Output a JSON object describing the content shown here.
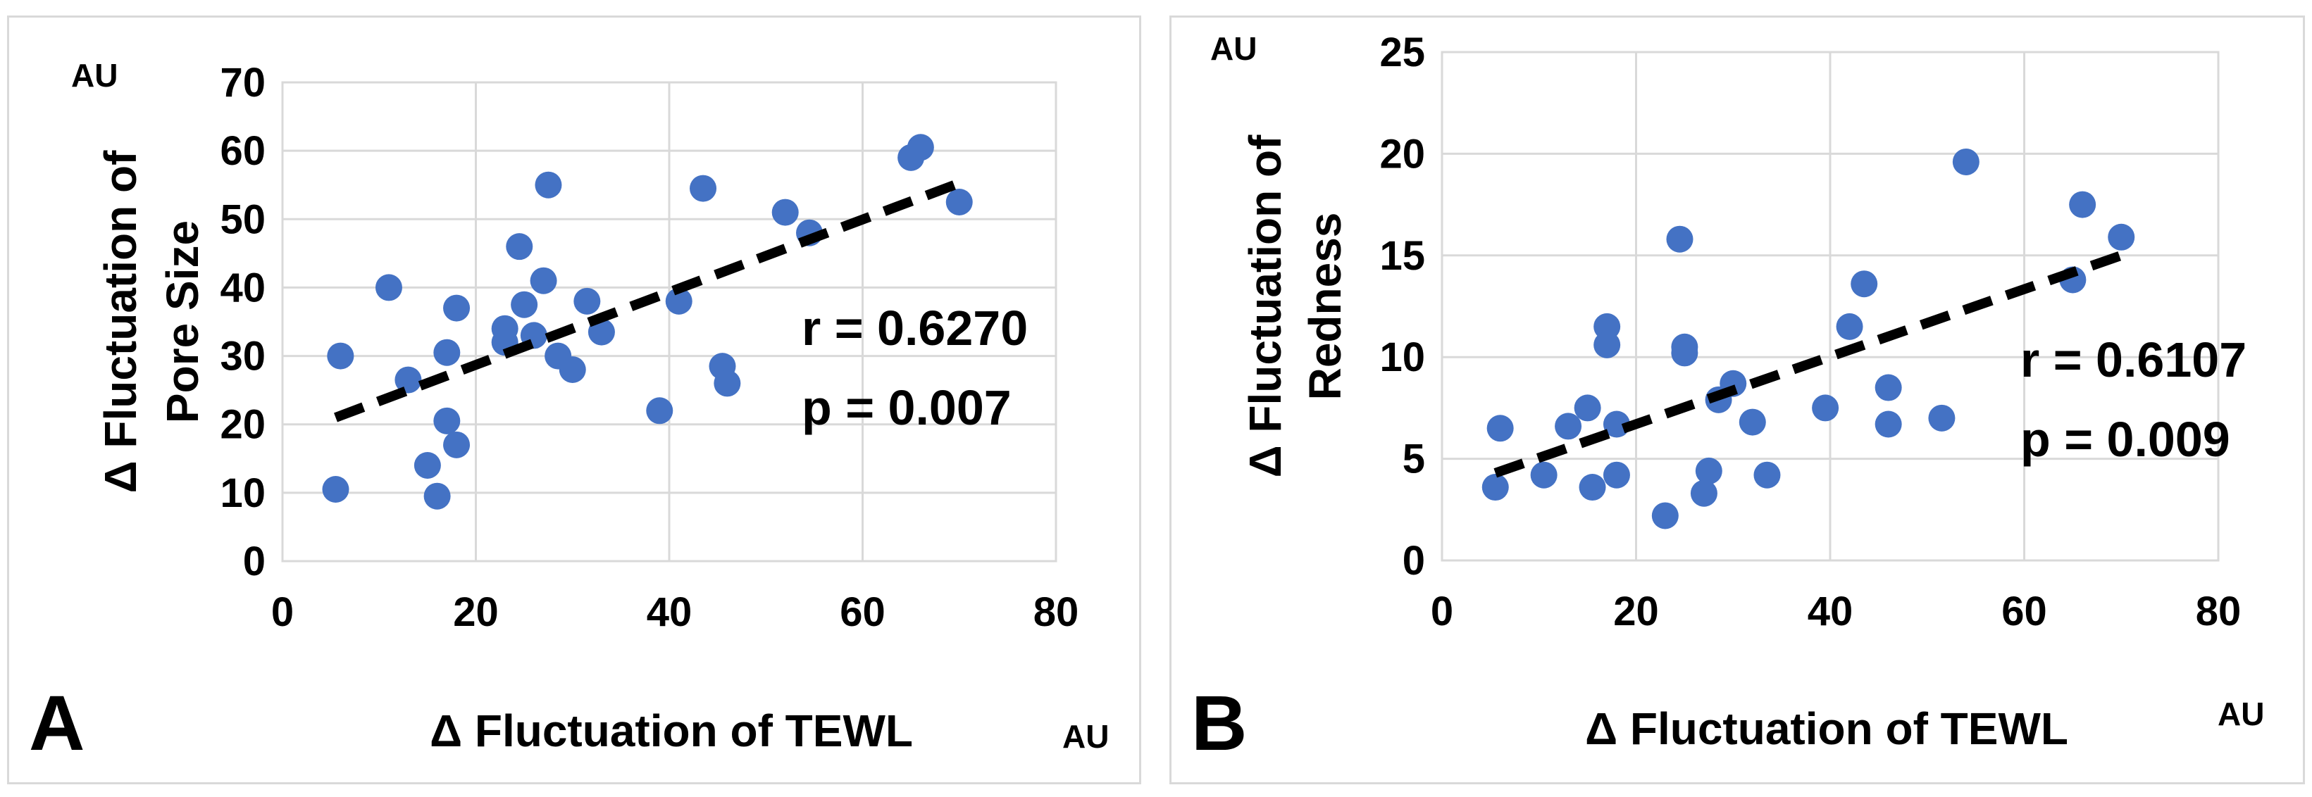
{
  "colors": {
    "marker": "#4472C4",
    "trendline": "#000000",
    "grid": "#d9d9d9"
  },
  "chart_data": [
    {
      "type": "scatter",
      "panel_label": "A",
      "title": "",
      "xlabel": "Δ Fluctuation of TEWL",
      "ylabel_lines": [
        "Δ Fluctuation of",
        "Pore Size"
      ],
      "x_unit": "AU",
      "y_unit": "AU",
      "xlim": [
        0,
        80
      ],
      "ylim": [
        0,
        70
      ],
      "x_ticks": [
        "0",
        "20",
        "40",
        "60",
        "80"
      ],
      "y_ticks": [
        "0",
        "10",
        "20",
        "30",
        "40",
        "50",
        "60",
        "70"
      ],
      "grid": true,
      "trendline": {
        "style": "dashed",
        "x": [
          5.5,
          69.5
        ],
        "y": [
          21,
          55
        ]
      },
      "stats": {
        "r": "r = 0.6270",
        "p": "p = 0.007"
      },
      "series": [
        {
          "name": "data",
          "x": [
            5.5,
            6,
            11,
            13,
            15,
            16,
            17,
            17,
            18,
            18,
            23,
            23,
            24.5,
            25,
            26,
            27,
            27.5,
            28.5,
            30,
            31.5,
            33,
            39,
            41,
            43.5,
            45.5,
            46,
            52,
            54.5,
            65,
            66,
            70
          ],
          "y": [
            10.5,
            30,
            40,
            26.5,
            14,
            9.5,
            30.5,
            20.5,
            17,
            37,
            34,
            32,
            46,
            37.5,
            33,
            41,
            55,
            30,
            28,
            38,
            33.5,
            22,
            38,
            54.5,
            28.5,
            26,
            51,
            48,
            59,
            60.5,
            52.5
          ]
        }
      ]
    },
    {
      "type": "scatter",
      "panel_label": "B",
      "title": "",
      "xlabel": "Δ Fluctuation of TEWL",
      "ylabel_lines": [
        "Δ Fluctuation of",
        "Redness"
      ],
      "x_unit": "AU",
      "y_unit": "AU",
      "xlim": [
        0,
        80
      ],
      "ylim": [
        0,
        25
      ],
      "x_ticks": [
        "0",
        "20",
        "40",
        "60",
        "80"
      ],
      "y_ticks": [
        "0",
        "5",
        "10",
        "15",
        "20",
        "25"
      ],
      "grid": true,
      "trendline": {
        "style": "dashed",
        "x": [
          5.5,
          70
        ],
        "y": [
          4.3,
          15
        ]
      },
      "stats": {
        "r": "r = 0.6107",
        "p": "p = 0.009"
      },
      "series": [
        {
          "name": "data",
          "x": [
            5.5,
            6,
            10.5,
            13,
            15,
            15.5,
            17,
            17,
            18,
            18,
            23,
            24.5,
            25,
            25,
            27,
            27.5,
            28.5,
            30,
            32,
            33.5,
            39.5,
            42,
            43.5,
            46,
            46,
            51.5,
            54,
            65,
            66,
            70
          ],
          "y": [
            3.6,
            6.5,
            4.2,
            6.6,
            7.5,
            3.6,
            11.5,
            10.6,
            6.7,
            4.2,
            2.2,
            15.8,
            10.5,
            10.2,
            3.3,
            4.4,
            7.9,
            8.7,
            6.8,
            4.2,
            7.5,
            11.5,
            13.6,
            8.5,
            6.7,
            7,
            19.6,
            13.8,
            17.5,
            15.9
          ]
        }
      ]
    }
  ]
}
